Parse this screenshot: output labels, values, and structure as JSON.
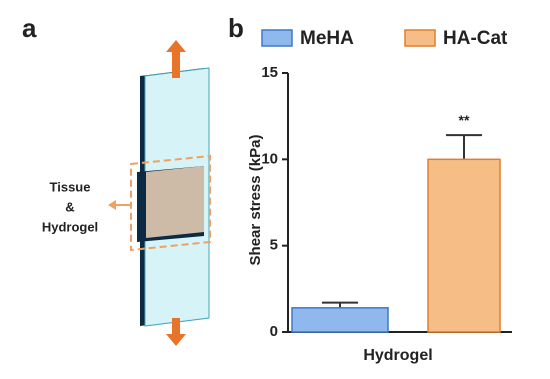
{
  "panel_labels": [
    "a",
    "b"
  ],
  "diagram": {
    "labels": [
      "Tissue",
      "&",
      "Hydrogel"
    ]
  },
  "chart_data": {
    "type": "bar",
    "y_label": "Shear stress (kPa)",
    "x_label": "Hydrogel",
    "annotation": "**",
    "ylim": [
      0,
      15
    ],
    "yticks": [
      0,
      5,
      10,
      15
    ],
    "series": [
      {
        "name": "MeHA",
        "color": "#8fb8ec",
        "edge": "#3f78c8",
        "values": [
          1.4
        ],
        "errors": [
          0.3
        ]
      },
      {
        "name": "HA-Cat",
        "color": "#f7bd86",
        "edge": "#e07f2a",
        "values": [
          10.0
        ],
        "errors": [
          1.4
        ]
      }
    ]
  }
}
